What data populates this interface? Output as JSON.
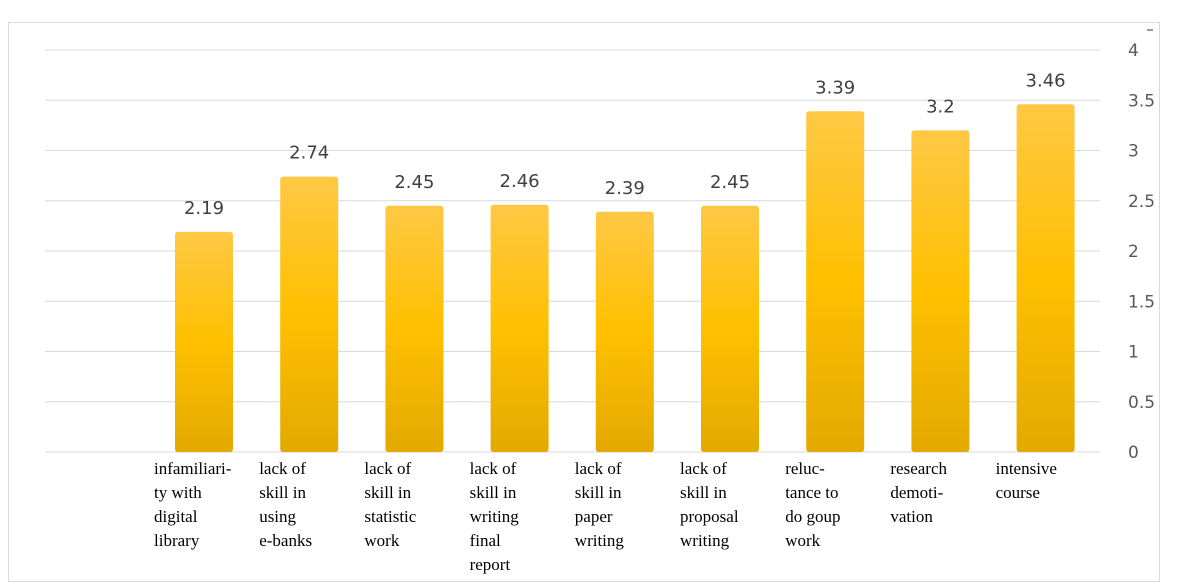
{
  "chart_data": {
    "type": "bar",
    "title": "",
    "xlabel": "",
    "ylabel": "",
    "ylim": [
      0,
      4
    ],
    "y_ticks": [
      "0",
      "0.5",
      "1",
      "1.5",
      "2",
      "2.5",
      "3",
      "3.5",
      "4"
    ],
    "y_axis_side": "right",
    "grid": true,
    "bar_color": "#FFC000",
    "categories": [
      [
        "infamiliari-",
        "ty with",
        "digital",
        "library"
      ],
      [
        "lack of",
        "skill in",
        "using",
        "e-banks"
      ],
      [
        "lack of",
        "skill in",
        "statistic",
        "work"
      ],
      [
        "lack of",
        "skill in",
        "writing",
        "final",
        "report"
      ],
      [
        "lack of",
        "skill in",
        "paper",
        "writing"
      ],
      [
        "lack of",
        "skill in",
        "proposal",
        "writing"
      ],
      [
        "reluc-",
        "tance to",
        "do goup",
        "work"
      ],
      [
        "research",
        "demoti-",
        "vation"
      ],
      [
        "intensive",
        "course"
      ]
    ],
    "values": [
      2.19,
      2.74,
      2.45,
      2.46,
      2.39,
      2.45,
      3.39,
      3.2,
      3.46
    ],
    "data_labels": [
      "2.19",
      "2.74",
      "2.45",
      "2.46",
      "2.39",
      "2.45",
      "3.39",
      "3.2",
      "3.46"
    ]
  }
}
